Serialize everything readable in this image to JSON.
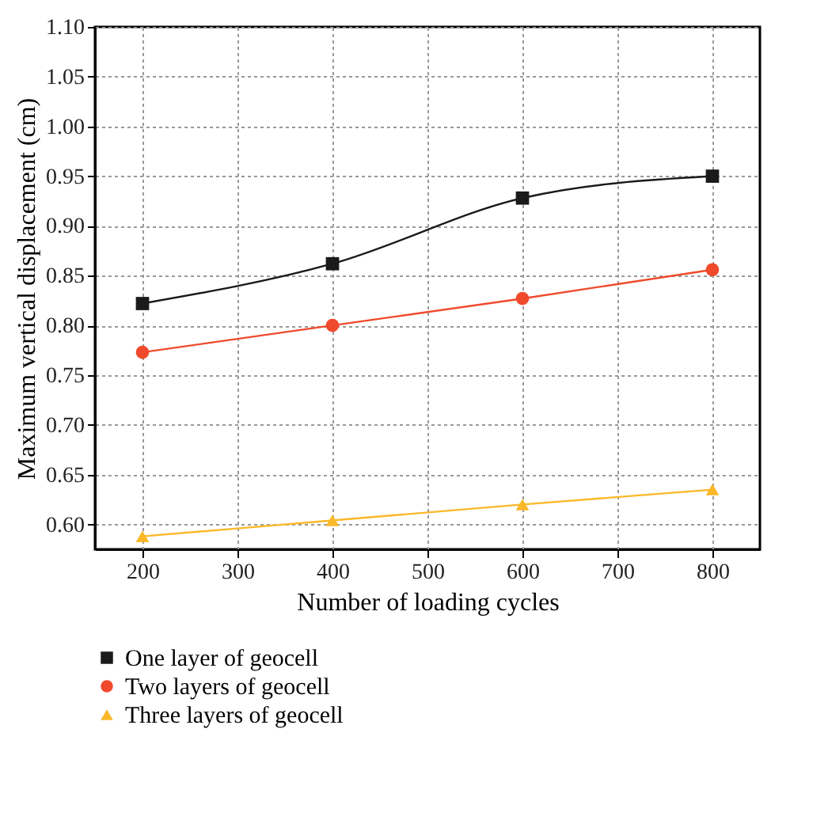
{
  "chart_data": {
    "type": "line",
    "xlabel": "Number of loading cycles",
    "ylabel": "Maximum vertical displacement (cm)",
    "x": [
      200,
      400,
      600,
      800
    ],
    "series": [
      {
        "name": "One layer of geocell",
        "color": "#1a1a1a",
        "marker": "square",
        "values": [
          0.822,
          0.862,
          0.928,
          0.95
        ]
      },
      {
        "name": "Two layers of geocell",
        "color": "#f04a2c",
        "marker": "circle",
        "values": [
          0.773,
          0.8,
          0.827,
          0.856
        ]
      },
      {
        "name": "Three layers of geocell",
        "color": "#fbb829",
        "marker": "triangle",
        "values": [
          0.588,
          0.604,
          0.62,
          0.635
        ]
      }
    ],
    "xlim": [
      150,
      850
    ],
    "xticks": [
      200,
      300,
      400,
      500,
      600,
      700,
      800
    ],
    "ylim": [
      0.575,
      1.1
    ],
    "yticks": [
      {
        "value": 0.6,
        "label": "0.60"
      },
      {
        "value": 0.65,
        "label": "0.65"
      },
      {
        "value": 0.7,
        "label": "0.70"
      },
      {
        "value": 0.75,
        "label": "0.75"
      },
      {
        "value": 0.8,
        "label": "0.80"
      },
      {
        "value": 0.85,
        "label": "0.85"
      },
      {
        "value": 0.9,
        "label": "0.90"
      },
      {
        "value": 0.95,
        "label": "0.95"
      },
      {
        "value": 1.0,
        "label": "1.00"
      },
      {
        "value": 1.05,
        "label": "1.05"
      },
      {
        "value": 1.1,
        "label": "1.10"
      }
    ],
    "grid": true,
    "legend": "bottom",
    "line_style": "solid"
  }
}
